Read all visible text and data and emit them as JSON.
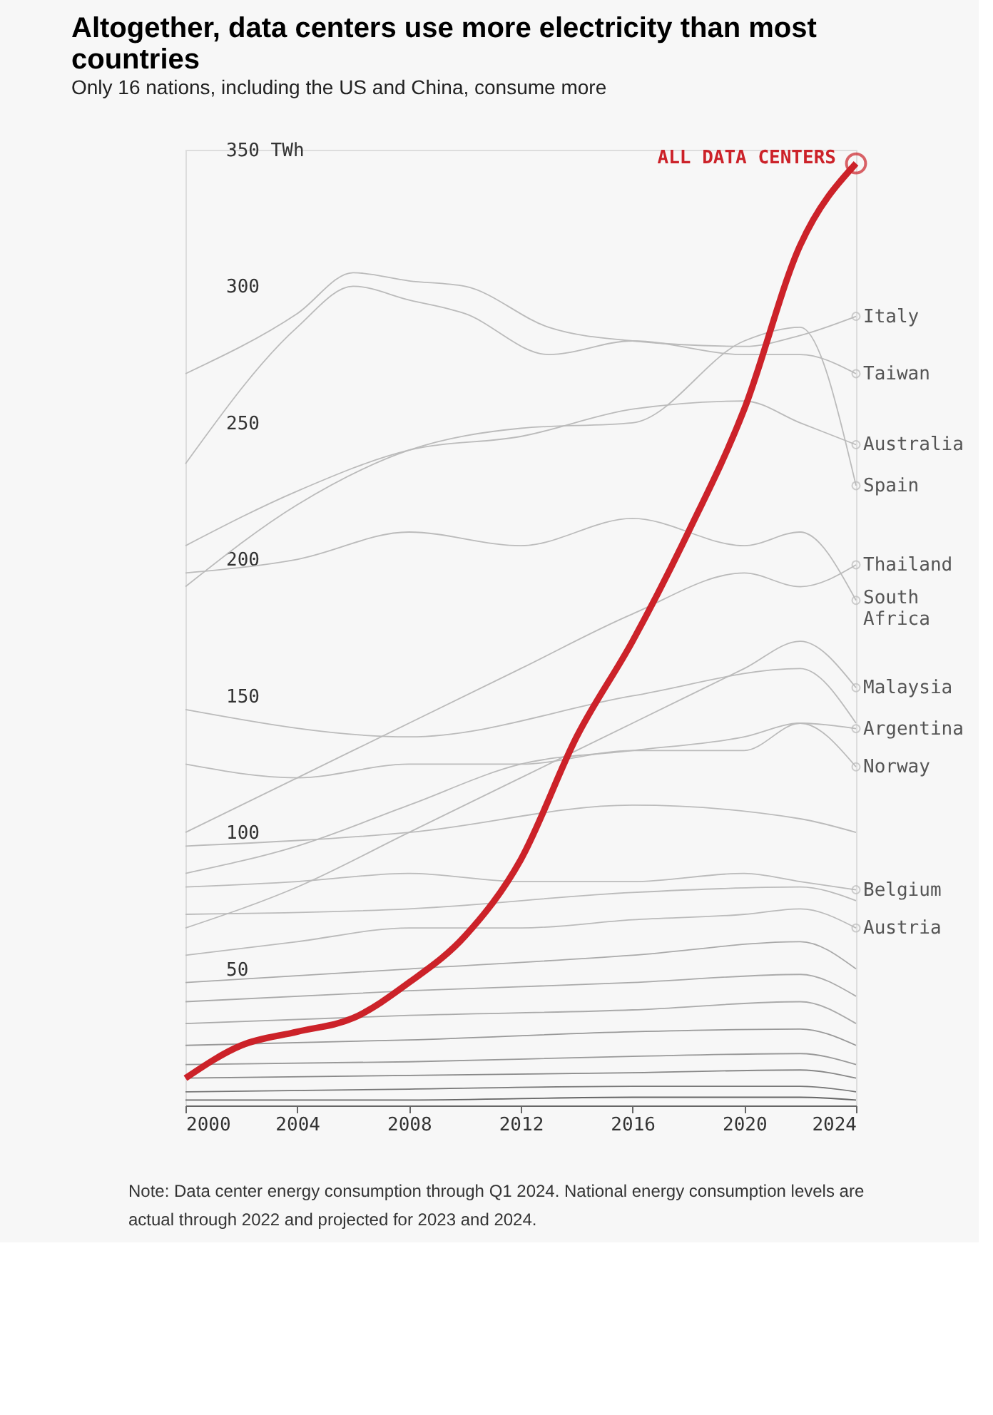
{
  "chart_data": {
    "type": "line",
    "title": "Altogether, data centers use more electricity than most countries",
    "subtitle": "Only 16 nations, including the US and China, consume more",
    "ylim": [
      0,
      350
    ],
    "yticks": [
      50,
      100,
      150,
      200,
      250,
      300,
      {
        "value": 350,
        "label": "350 TWh"
      }
    ],
    "xlim": [
      2000,
      2024
    ],
    "xticks": [
      2000,
      2004,
      2008,
      2012,
      2016,
      2020,
      2024
    ],
    "grid": false,
    "legend": "right",
    "annotations": [
      "Note: Data center energy consumption through Q1 2024. National energy consumption levels are actual through 2022 and projected for 2023 and 2024."
    ],
    "series": [
      {
        "name": "ALL DATA CENTERS",
        "color": "#cc2229",
        "x": [
          2000,
          2002,
          2004,
          2006,
          2008,
          2010,
          2012,
          2014,
          2016,
          2018,
          2020,
          2022,
          2024
        ],
        "values": [
          10,
          22,
          27,
          32,
          45,
          62,
          90,
          135,
          170,
          210,
          255,
          315,
          345
        ]
      },
      {
        "name": "Italy",
        "color": "#bbbbbb",
        "x": [
          2000,
          2004,
          2006,
          2008,
          2010,
          2013,
          2016,
          2020,
          2022,
          2024
        ],
        "values": [
          268,
          290,
          305,
          302,
          300,
          285,
          280,
          278,
          282,
          289
        ]
      },
      {
        "name": "Taiwan",
        "color": "#bbbbbb",
        "x": [
          2000,
          2004,
          2006,
          2008,
          2010,
          2013,
          2016,
          2020,
          2022,
          2024
        ],
        "values": [
          235,
          285,
          300,
          295,
          290,
          275,
          280,
          275,
          275,
          268
        ]
      },
      {
        "name": "Australia",
        "color": "#bbbbbb",
        "x": [
          2000,
          2004,
          2008,
          2012,
          2016,
          2020,
          2022,
          2024
        ],
        "values": [
          205,
          225,
          240,
          245,
          255,
          258,
          250,
          242
        ]
      },
      {
        "name": "Spain",
        "color": "#bbbbbb",
        "x": [
          2000,
          2004,
          2008,
          2012,
          2016,
          2020,
          2022,
          2024
        ],
        "values": [
          190,
          220,
          240,
          248,
          250,
          280,
          285,
          227
        ]
      },
      {
        "name": "Thailand",
        "color": "#bbbbbb",
        "x": [
          2000,
          2004,
          2008,
          2012,
          2016,
          2020,
          2022,
          2024
        ],
        "values": [
          100,
          120,
          140,
          160,
          180,
          195,
          190,
          198
        ]
      },
      {
        "name": "South Africa",
        "color": "#bbbbbb",
        "x": [
          2000,
          2004,
          2008,
          2012,
          2016,
          2020,
          2022,
          2024
        ],
        "values": [
          195,
          200,
          210,
          205,
          215,
          205,
          210,
          185
        ]
      },
      {
        "name": "Malaysia",
        "color": "#bbbbbb",
        "x": [
          2000,
          2004,
          2008,
          2012,
          2016,
          2020,
          2022,
          2024
        ],
        "values": [
          65,
          80,
          100,
          120,
          140,
          160,
          170,
          153
        ]
      },
      {
        "name": "Argentina",
        "color": "#bbbbbb",
        "x": [
          2000,
          2004,
          2008,
          2012,
          2016,
          2020,
          2022,
          2024
        ],
        "values": [
          85,
          95,
          110,
          125,
          130,
          135,
          140,
          138
        ]
      },
      {
        "name": "Norway",
        "color": "#bbbbbb",
        "x": [
          2000,
          2004,
          2008,
          2012,
          2016,
          2020,
          2022,
          2024
        ],
        "values": [
          125,
          120,
          125,
          125,
          130,
          130,
          140,
          124
        ]
      },
      {
        "name": "Belgium",
        "color": "#bbbbbb",
        "x": [
          2000,
          2004,
          2008,
          2012,
          2016,
          2020,
          2022,
          2024
        ],
        "values": [
          80,
          82,
          85,
          82,
          82,
          85,
          82,
          79
        ]
      },
      {
        "name": "Austria",
        "color": "#bbbbbb",
        "x": [
          2000,
          2004,
          2008,
          2012,
          2016,
          2020,
          2022,
          2024
        ],
        "values": [
          55,
          60,
          65,
          65,
          68,
          70,
          72,
          65
        ]
      },
      {
        "color": "#bbbbbb",
        "x": [
          2000,
          2008,
          2016,
          2022,
          2024
        ],
        "values": [
          145,
          135,
          150,
          160,
          140
        ]
      },
      {
        "color": "#bbbbbb",
        "x": [
          2000,
          2008,
          2016,
          2022,
          2024
        ],
        "values": [
          95,
          100,
          110,
          105,
          100
        ]
      },
      {
        "color": "#bbbbbb",
        "x": [
          2000,
          2008,
          2016,
          2022,
          2024
        ],
        "values": [
          70,
          72,
          78,
          80,
          75
        ]
      },
      {
        "color": "#aaaaaa",
        "x": [
          2000,
          2008,
          2016,
          2022,
          2024
        ],
        "values": [
          45,
          50,
          55,
          60,
          50
        ]
      },
      {
        "color": "#aaaaaa",
        "x": [
          2000,
          2008,
          2016,
          2022,
          2024
        ],
        "values": [
          38,
          42,
          45,
          48,
          40
        ]
      },
      {
        "color": "#aaaaaa",
        "x": [
          2000,
          2008,
          2016,
          2022,
          2024
        ],
        "values": [
          30,
          33,
          35,
          38,
          30
        ]
      },
      {
        "color": "#999999",
        "x": [
          2000,
          2008,
          2016,
          2022,
          2024
        ],
        "values": [
          22,
          24,
          27,
          28,
          22
        ]
      },
      {
        "color": "#999999",
        "x": [
          2000,
          2008,
          2016,
          2022,
          2024
        ],
        "values": [
          15,
          16,
          18,
          19,
          15
        ]
      },
      {
        "color": "#888888",
        "x": [
          2000,
          2008,
          2016,
          2022,
          2024
        ],
        "values": [
          10,
          11,
          12,
          13,
          10
        ]
      },
      {
        "color": "#777777",
        "x": [
          2000,
          2008,
          2016,
          2022,
          2024
        ],
        "values": [
          5,
          6,
          7,
          7,
          5
        ]
      },
      {
        "color": "#666666",
        "x": [
          2000,
          2008,
          2016,
          2022,
          2024
        ],
        "values": [
          2,
          2,
          3,
          3,
          2
        ]
      }
    ]
  }
}
